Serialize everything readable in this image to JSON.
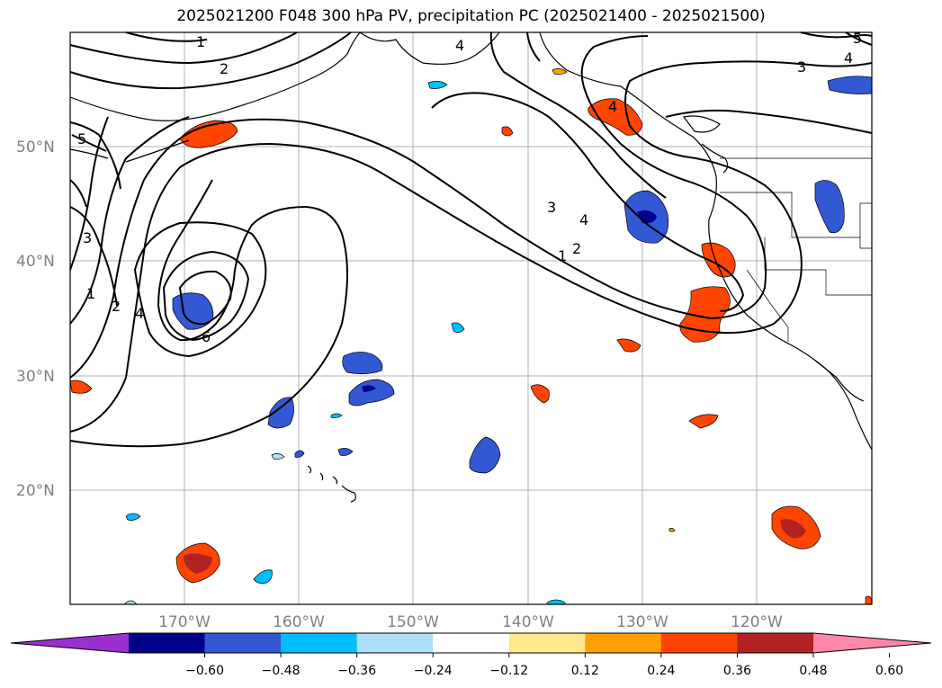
{
  "title": "2025021200 F048 300 hPa PV, precipitation PC (2025021400 - 2025021500)",
  "map": {
    "lat_labels": [
      "50°N",
      "40°N",
      "30°N",
      "20°N"
    ],
    "lon_labels": [
      "170°W",
      "160°W",
      "150°W",
      "140°W",
      "130°W",
      "120°W"
    ],
    "pv_contour_labels": [
      "1",
      "2",
      "3",
      "4",
      "4",
      "5",
      "1",
      "2",
      "3",
      "4",
      "6",
      "3",
      "4",
      "1",
      "2",
      "4",
      "5"
    ]
  },
  "colorbar": {
    "ticks": [
      "−0.60",
      "−0.48",
      "−0.36",
      "−0.24",
      "−0.12",
      "0.12",
      "0.24",
      "0.36",
      "0.48",
      "0.60"
    ],
    "colors": [
      "#9b30d0",
      "#00008b",
      "#3358d4",
      "#00bfff",
      "#ade0f9",
      "#ffffff",
      "#ffe98a",
      "#ffa000",
      "#ff4500",
      "#b22222",
      "#ff88aa"
    ]
  }
}
